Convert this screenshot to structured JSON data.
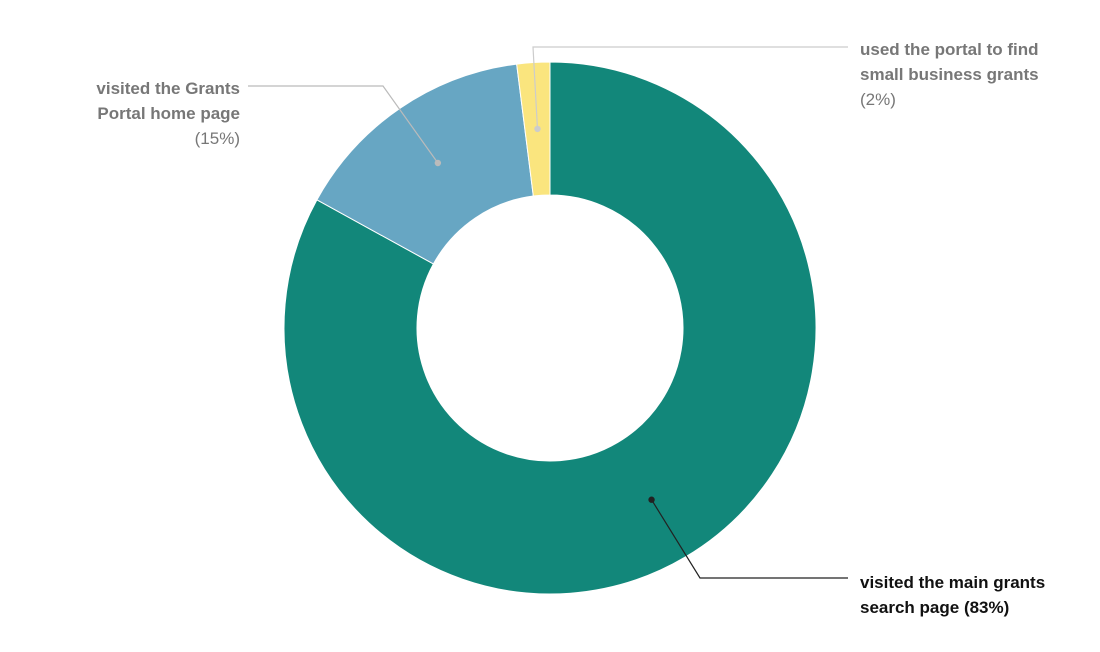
{
  "chart_data": {
    "type": "pie",
    "variant": "donut",
    "start_angle_deg": 0,
    "direction": "clockwise",
    "grid": false,
    "legend": "none",
    "slices": [
      {
        "label_lines": [
          "visited the main grants",
          "search page (83%)"
        ],
        "value": 83,
        "color": "#12877A",
        "label_color": "#111111",
        "leader_color": "#222222",
        "label_side": "right"
      },
      {
        "label_lines": [
          "visited the Grants",
          "Portal home page",
          "(15%)"
        ],
        "value": 15,
        "color": "#67A6C3",
        "label_color": "#777777",
        "leader_color": "#BBBBBB",
        "label_side": "left"
      },
      {
        "label_lines": [
          "used the portal to find",
          "small business grants",
          "(2%)"
        ],
        "value": 2,
        "color": "#FAE57E",
        "label_color": "#777777",
        "leader_color": "#CCCCCC",
        "label_side": "right"
      }
    ]
  }
}
